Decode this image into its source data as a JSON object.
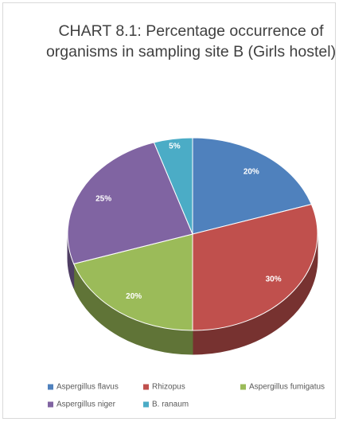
{
  "chart_data": {
    "type": "pie",
    "title": "CHART 8.1: Percentage occurrence of organisms in sampling site B (Girls hostel)",
    "categories": [
      "Aspergillus flavus",
      "Rhizopus",
      "Aspergillus fumigatus",
      "Aspergillus niger",
      "B. ranaum"
    ],
    "values": [
      20,
      30,
      20,
      25,
      5
    ],
    "value_labels": [
      "20%",
      "30%",
      "20%",
      "25%",
      "5%"
    ],
    "colors": [
      "#4f81bd",
      "#c0504d",
      "#9bbb59",
      "#8064a2",
      "#4bacc6"
    ],
    "legend": "bottom"
  }
}
